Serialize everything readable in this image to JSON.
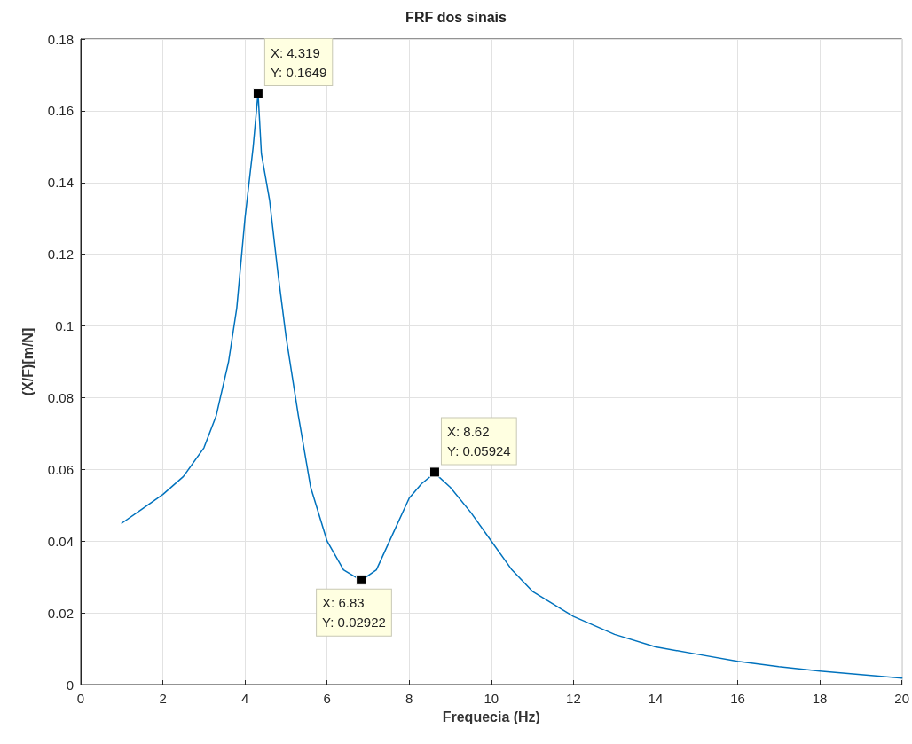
{
  "chart_data": {
    "type": "line",
    "title": "FRF dos sinais",
    "xlabel": "Frequecia (Hz)",
    "ylabel": "(X/F)[m/N]",
    "series": [
      {
        "color": "#0072bd",
        "x": [
          1.0,
          1.5,
          2.0,
          2.5,
          3.0,
          3.3,
          3.6,
          3.8,
          4.0,
          4.2,
          4.319,
          4.4,
          4.6,
          4.8,
          5.0,
          5.3,
          5.6,
          6.0,
          6.4,
          6.83,
          7.2,
          7.6,
          8.0,
          8.3,
          8.62,
          9.0,
          9.5,
          10.0,
          10.5,
          11.0,
          12.0,
          13.0,
          14.0,
          15.0,
          16.0,
          17.0,
          18.0,
          19.0,
          20.0
        ],
        "values": [
          0.045,
          0.049,
          0.053,
          0.058,
          0.066,
          0.075,
          0.09,
          0.105,
          0.13,
          0.15,
          0.165,
          0.148,
          0.135,
          0.115,
          0.097,
          0.075,
          0.055,
          0.04,
          0.032,
          0.029,
          0.032,
          0.042,
          0.052,
          0.056,
          0.059,
          0.055,
          0.048,
          0.04,
          0.032,
          0.026,
          0.019,
          0.014,
          0.0105,
          0.0085,
          0.0065,
          0.005,
          0.0038,
          0.0028,
          0.0018
        ]
      }
    ],
    "xlim": [
      0,
      20
    ],
    "xticks": [
      0,
      2,
      4,
      6,
      8,
      10,
      12,
      14,
      16,
      18,
      20
    ],
    "ylim": [
      0,
      0.18
    ],
    "yticks": [
      0,
      0.02,
      0.04,
      0.06,
      0.08,
      0.1,
      0.12,
      0.14,
      0.16,
      0.18
    ],
    "grid": true,
    "marker": "none",
    "line_style": "solid",
    "annotations": [
      {
        "text": "X: 4.319\nY: 0.1649",
        "x": 4.319,
        "y": 0.1649
      },
      {
        "text": "X: 6.83\nY: 0.02922",
        "x": 6.83,
        "y": 0.02922
      },
      {
        "text": "X: 8.62\nY: 0.05924",
        "x": 8.62,
        "y": 0.05924
      }
    ]
  }
}
